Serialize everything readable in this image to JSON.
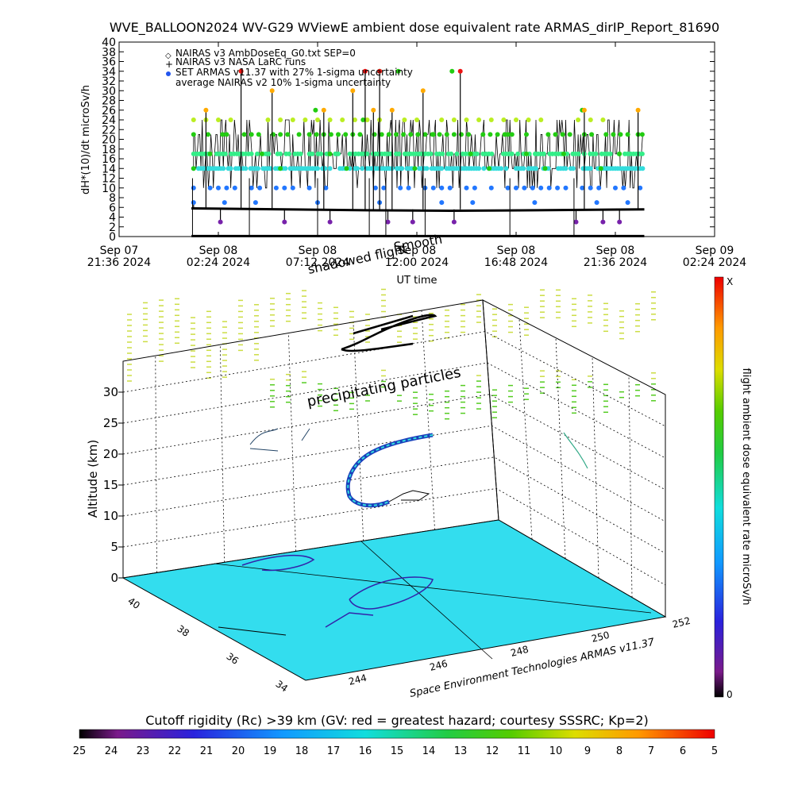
{
  "chart_data": [
    {
      "type": "scatter",
      "title": "WVE_BALLOON2024 WV-G29 WViewE ambient dose equivalent rate ARMAS_dirIP_Report_81690",
      "xlabel": "UT time",
      "ylabel": "dH*(10)/dt microSv/h",
      "ylim": [
        0,
        40
      ],
      "yticks": [
        0,
        2,
        4,
        6,
        8,
        10,
        12,
        14,
        16,
        18,
        20,
        22,
        24,
        26,
        28,
        30,
        32,
        34,
        36,
        38,
        40
      ],
      "xticks": [
        {
          "line1": "Sep 07",
          "line2": "21:36 2024"
        },
        {
          "line1": "Sep 08",
          "line2": "02:24 2024"
        },
        {
          "line1": "Sep 08",
          "line2": "07:12 2024"
        },
        {
          "line1": "Sep 08",
          "line2": "12:00 2024"
        },
        {
          "line1": "Sep 08",
          "line2": "16:48 2024"
        },
        {
          "line1": "Sep 08",
          "line2": "21:36 2024"
        },
        {
          "line1": "Sep 09",
          "line2": "02:24 2024"
        }
      ],
      "legend_position": "top-left",
      "legend": [
        {
          "marker": "diamond",
          "label": "NAIRAS v3 AmbDoseEq_G0.txt SEP=0"
        },
        {
          "marker": "plus",
          "label": "NAIRAS v3 NASA LaRC runs"
        },
        {
          "marker": "dot",
          "label": "SET ARMAS v11.37 with 27% 1-sigma uncertainty"
        },
        {
          "marker": "none",
          "label": "average NAIRAS v2 10% 1-sigma uncertainty"
        }
      ],
      "annotations": [
        "shadowed flight",
        "Smooth"
      ],
      "series": [
        {
          "name": "NAIRAS v3 AmbDoseEq_G0.txt SEP=0",
          "x_hours": [
            3.5,
            25.4
          ],
          "values": [
            0.1,
            0.1
          ]
        },
        {
          "name": "average NAIRAS v2 10% 1-sigma uncertainty",
          "x_hours": [
            3.5,
            8.0,
            12.0,
            16.0,
            20.0,
            25.4
          ],
          "values": [
            5.8,
            5.6,
            5.4,
            5.3,
            5.4,
            5.6
          ]
        },
        {
          "name": "SET ARMAS v11.37 with 27% 1-sigma uncertainty",
          "x_hours": [
            3.6,
            4.4,
            5.2,
            5.9,
            6.9,
            7.8,
            8.7,
            9.5,
            10.2,
            11.0,
            11.8,
            12.6,
            13.5,
            14.3,
            15.2,
            16.1,
            17.0,
            17.9,
            18.8,
            19.7,
            20.6,
            21.5,
            22.4,
            23.3,
            24.2,
            25.1
          ],
          "values": [
            14,
            17,
            21,
            34,
            17,
            14,
            21,
            26,
            17,
            14,
            24,
            34,
            34,
            14,
            21,
            34,
            17,
            14,
            21,
            17,
            14,
            17,
            26,
            14,
            17,
            21
          ]
        }
      ]
    },
    {
      "type": "scatter",
      "zlabel": "Altitude (km)",
      "zticks": [
        "0",
        "5",
        "10",
        "15",
        "20",
        "25",
        "30"
      ],
      "lat_ticks": [
        "40",
        "38",
        "36",
        "34"
      ],
      "lon_ticks": [
        "244",
        "246",
        "248",
        "250",
        "252"
      ],
      "annotations": [
        "precipitating particles",
        "Space Environment Technologies ARMAS v11.37"
      ],
      "colorbar": {
        "label": "flight ambient dose equivalent rate microSv/h",
        "top_label": "X",
        "bottom_label": "0"
      },
      "bottom_colorbar": {
        "label": "Cutoff rigidity (Rc) >39 km (GV: red = greatest hazard; courtesy SSSRC; Kp=2)",
        "ticks": [
          "25",
          "24",
          "23",
          "22",
          "21",
          "20",
          "19",
          "18",
          "17",
          "16",
          "15",
          "14",
          "13",
          "12",
          "11",
          "10",
          "9",
          "8",
          "7",
          "6",
          "5"
        ]
      }
    }
  ],
  "colors": {
    "plot_bg": "#ffffff",
    "grid": "#000000",
    "floor": "#33ddee",
    "red": "#ee1111",
    "orange": "#ffaa00",
    "yellow_green": "#bbee22",
    "green": "#22cc11",
    "sea_green": "#33ee88",
    "cyan": "#33dddd",
    "blue": "#2277ff",
    "purple": "#7722aa"
  }
}
